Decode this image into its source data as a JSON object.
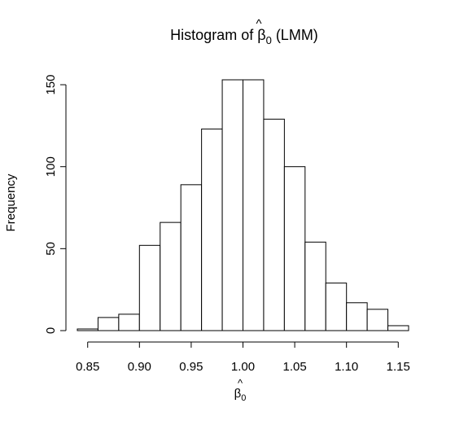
{
  "chart_data": {
    "type": "bar",
    "title": {
      "prefix": "Histogram of ",
      "symbol": "β",
      "hat": "^",
      "subscript": "0",
      "suffix": " (LMM)"
    },
    "xlabel": {
      "symbol": "β",
      "hat": "^",
      "subscript": "0"
    },
    "ylabel": "Frequency",
    "bin_edges": [
      0.84,
      0.86,
      0.88,
      0.9,
      0.92,
      0.94,
      0.96,
      0.98,
      1.0,
      1.02,
      1.04,
      1.06,
      1.08,
      1.1,
      1.12,
      1.14,
      1.16
    ],
    "values": [
      1,
      8,
      10,
      52,
      66,
      89,
      123,
      153,
      153,
      129,
      100,
      54,
      29,
      17,
      13,
      3
    ],
    "xticks": [
      "0.85",
      "0.90",
      "0.95",
      "1.00",
      "1.05",
      "1.10",
      "1.15"
    ],
    "yticks": [
      "0",
      "50",
      "100",
      "150"
    ],
    "xlim": [
      0.84,
      1.16
    ],
    "ylim": [
      0,
      153
    ],
    "grid": false,
    "bar_fill": "#ffffff",
    "bar_stroke": "#000000"
  }
}
